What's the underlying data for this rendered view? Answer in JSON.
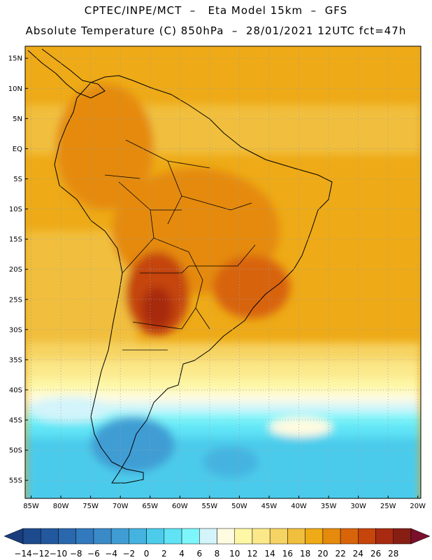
{
  "header": {
    "line1": "CPTEC/INPE/MCT  –   Eta Model 15km  –  GFS",
    "line2": "Absolute Temperature (C) 850hPa  –  28/01/2021 12UTC fct=47h"
  },
  "map": {
    "lon_range": [
      -86,
      -19.5
    ],
    "lat_range": [
      -58,
      17
    ],
    "lat_ticks": [
      {
        "value": 15,
        "label": "15N"
      },
      {
        "value": 10,
        "label": "10N"
      },
      {
        "value": 5,
        "label": "5N"
      },
      {
        "value": 0,
        "label": "EQ"
      },
      {
        "value": -5,
        "label": "5S"
      },
      {
        "value": -10,
        "label": "10S"
      },
      {
        "value": -15,
        "label": "15S"
      },
      {
        "value": -20,
        "label": "20S"
      },
      {
        "value": -25,
        "label": "25S"
      },
      {
        "value": -30,
        "label": "30S"
      },
      {
        "value": -35,
        "label": "35S"
      },
      {
        "value": -40,
        "label": "40S"
      },
      {
        "value": -45,
        "label": "45S"
      },
      {
        "value": -50,
        "label": "50S"
      },
      {
        "value": -55,
        "label": "55S"
      }
    ],
    "lon_ticks": [
      {
        "value": -85,
        "label": "85W"
      },
      {
        "value": -80,
        "label": "80W"
      },
      {
        "value": -75,
        "label": "75W"
      },
      {
        "value": -70,
        "label": "70W"
      },
      {
        "value": -65,
        "label": "65W"
      },
      {
        "value": -60,
        "label": "60W"
      },
      {
        "value": -55,
        "label": "55W"
      },
      {
        "value": -50,
        "label": "50W"
      },
      {
        "value": -45,
        "label": "45W"
      },
      {
        "value": -40,
        "label": "40W"
      },
      {
        "value": -35,
        "label": "35W"
      },
      {
        "value": -30,
        "label": "30W"
      },
      {
        "value": -25,
        "label": "25W"
      },
      {
        "value": -20,
        "label": "20W"
      }
    ]
  },
  "colorbar": {
    "unit": "C",
    "labels": [
      "-14",
      "-12",
      "-10",
      "-8",
      "-6",
      "-4",
      "-2",
      "0",
      "2",
      "4",
      "6",
      "8",
      "10",
      "12",
      "14",
      "16",
      "18",
      "20",
      "22",
      "24",
      "26",
      "28"
    ],
    "colors": [
      "#1d4a8c",
      "#22589e",
      "#2a68ae",
      "#3279bd",
      "#3a8ac8",
      "#3f9dd4",
      "#45b3e0",
      "#4ccbeb",
      "#5fe3f5",
      "#7cf6fa",
      "#d2f4fa",
      "#fffbe0",
      "#fdf7a6",
      "#fbe88a",
      "#f6d463",
      "#f1bf3e",
      "#eeaa17",
      "#e58a0c",
      "#d8640a",
      "#c5450b",
      "#a82a10",
      "#861e14"
    ],
    "under_color": "#1a3c7c",
    "over_color": "#7a0f2c"
  }
}
